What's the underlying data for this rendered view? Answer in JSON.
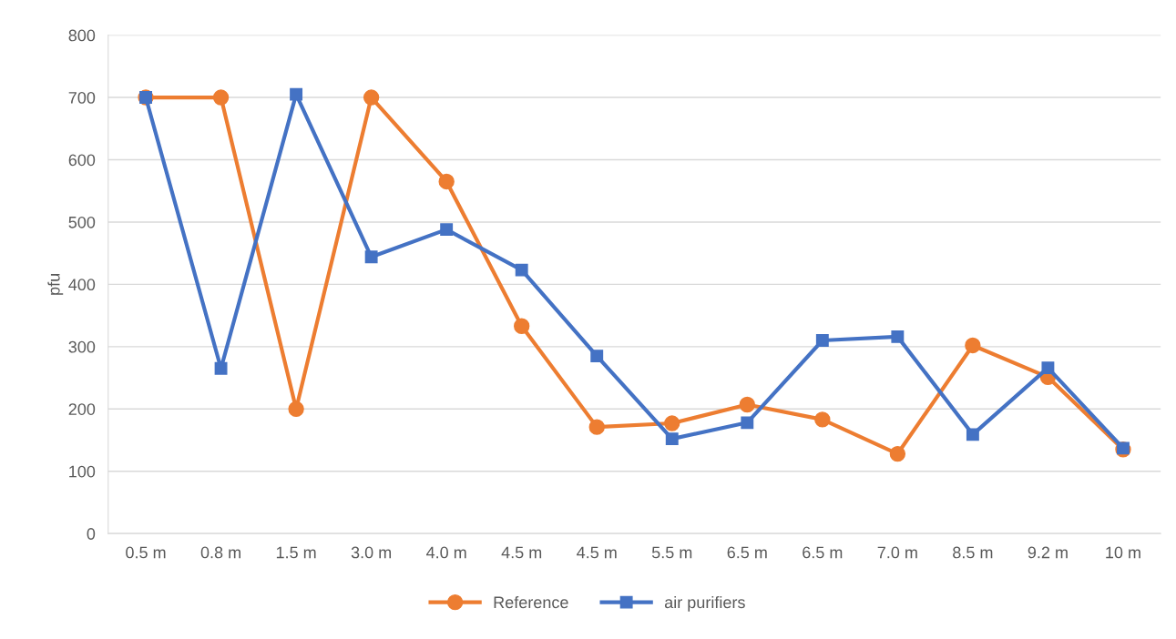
{
  "chart_data": {
    "type": "line",
    "ylabel": "pfu",
    "categories": [
      "0.5 m",
      "0.8 m",
      "1.5 m",
      "3.0 m",
      "4.0 m",
      "4.5 m",
      "4.5 m",
      "5.5 m",
      "6.5 m",
      "6.5 m",
      "7.0 m",
      "8.5 m",
      "9.2 m",
      "10 m"
    ],
    "series": [
      {
        "name": "Reference",
        "color": "#ed7d31",
        "marker": "circle",
        "values": [
          700,
          700,
          200,
          700,
          565,
          333,
          171,
          177,
          207,
          183,
          128,
          302,
          251,
          135
        ]
      },
      {
        "name": "air purifiers",
        "color": "#4472c4",
        "marker": "square",
        "values": [
          700,
          265,
          705,
          444,
          488,
          423,
          285,
          152,
          178,
          310,
          316,
          159,
          266,
          137
        ]
      }
    ],
    "ylim": [
      0,
      800
    ],
    "yticks": [
      0,
      100,
      200,
      300,
      400,
      500,
      600,
      700,
      800
    ],
    "grid": "y",
    "legend": "bottom",
    "line_style": "solid"
  }
}
